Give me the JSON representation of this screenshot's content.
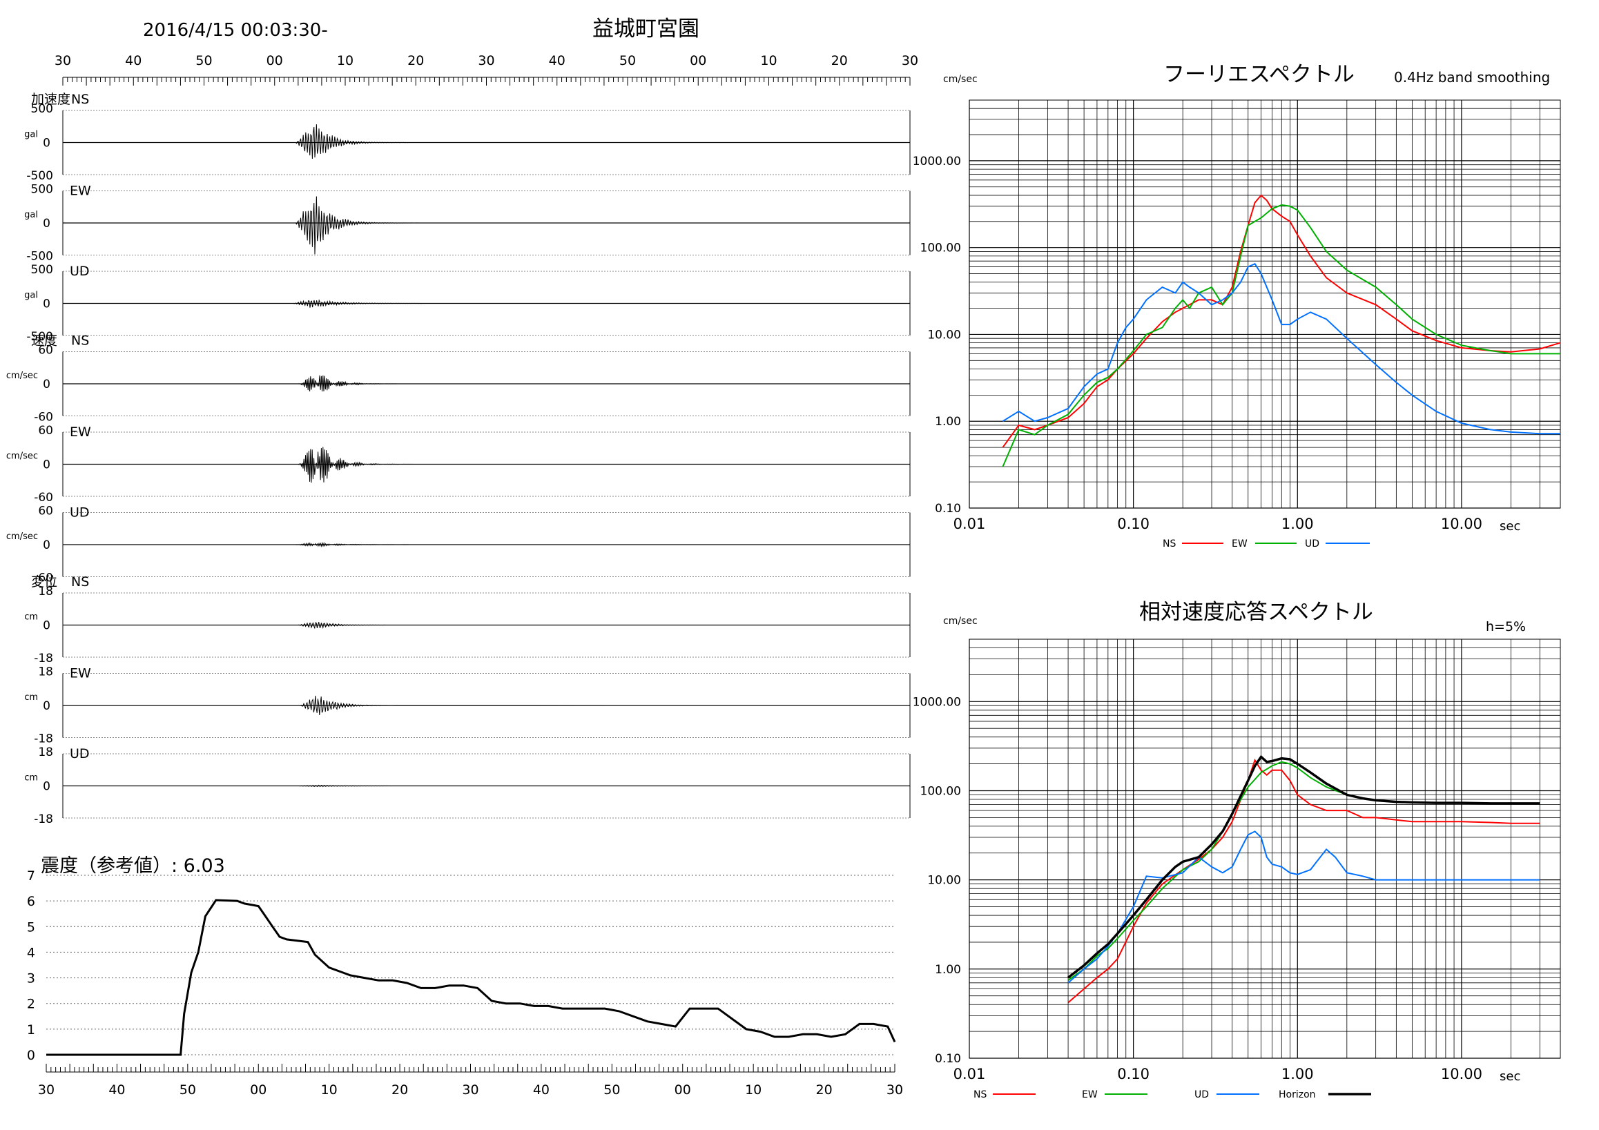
{
  "header": {
    "datetime": "2016/4/15 00:03:30-",
    "station": "益城町宮園"
  },
  "time_axis": {
    "top_labels": [
      "30",
      "40",
      "50",
      "00",
      "10",
      "20",
      "30",
      "40",
      "50",
      "00",
      "10",
      "20",
      "30"
    ],
    "bottom_labels": [
      "30",
      "40",
      "50",
      "00",
      "10",
      "20",
      "30",
      "40",
      "50",
      "00",
      "10",
      "20",
      "30"
    ]
  },
  "colors": {
    "NS": "#ff0000",
    "EW": "#00b000",
    "UD": "#0070ff",
    "Horizon": "#000000",
    "grid": "#000000",
    "trace": "#000000"
  },
  "waveforms": {
    "units": {
      "acc": "gal",
      "vel": "cm/sec",
      "disp": "cm"
    },
    "group_labels": {
      "acc": "加速度",
      "vel": "速度",
      "disp": "変位"
    },
    "panels": [
      {
        "label": "NS",
        "max": "500",
        "zero": "0",
        "min": "-500",
        "peak": 330,
        "onset_s": 49.5,
        "scale": 500
      },
      {
        "label": "EW",
        "max": "500",
        "zero": "0",
        "min": "-500",
        "peak": 470,
        "onset_s": 49.5,
        "scale": 500
      },
      {
        "label": "UD",
        "max": "500",
        "zero": "0",
        "min": "-500",
        "peak": 70,
        "onset_s": 49.0,
        "scale": 500
      },
      {
        "label": "NS",
        "max": "60",
        "zero": "0",
        "min": "-60",
        "peak": 24,
        "onset_s": 50.0,
        "scale": 60
      },
      {
        "label": "EW",
        "max": "60",
        "zero": "0",
        "min": "-60",
        "peak": 50,
        "onset_s": 50.0,
        "scale": 60
      },
      {
        "label": "UD",
        "max": "60",
        "zero": "0",
        "min": "-60",
        "peak": 4,
        "onset_s": 49.5,
        "scale": 60
      },
      {
        "label": "NS",
        "max": "18",
        "zero": "0",
        "min": "-18",
        "peak": 2.3,
        "onset_s": 50.0,
        "scale": 18
      },
      {
        "label": "EW",
        "max": "18",
        "zero": "0",
        "min": "-18",
        "peak": 6.5,
        "onset_s": 50.5,
        "scale": 18
      },
      {
        "label": "UD",
        "max": "18",
        "zero": "0",
        "min": "-18",
        "peak": 0.5,
        "onset_s": 50.0,
        "scale": 18
      }
    ]
  },
  "intensity": {
    "title": "震度（参考値）: 6.03",
    "y_ticks": [
      "0",
      "1",
      "2",
      "3",
      "4",
      "5",
      "6",
      "7"
    ]
  },
  "fourier": {
    "title": "フーリエスペクトル",
    "subtitle": "0.4Hz band smoothing",
    "y_unit": "cm/sec",
    "x_unit": "sec",
    "y_ticks": [
      "0.10",
      "1.00",
      "10.00",
      "100.00",
      "1000.00"
    ],
    "x_ticks": [
      "0.01",
      "0.10",
      "1.00",
      "10.00"
    ],
    "legend": [
      "NS",
      "EW",
      "UD"
    ]
  },
  "response": {
    "title": "相対速度応答スペクトル",
    "damping": "h=5%",
    "y_unit": "cm/sec",
    "x_unit": "sec",
    "y_ticks": [
      "0.10",
      "1.00",
      "10.00",
      "100.00",
      "1000.00"
    ],
    "x_ticks": [
      "0.01",
      "0.10",
      "1.00",
      "10.00"
    ],
    "legend": [
      "NS",
      "EW",
      "UD",
      "Horizon"
    ]
  },
  "chart_data": [
    {
      "type": "line",
      "title": "震度（参考値）: 6.03",
      "xlabel": "",
      "ylabel": "",
      "ylim": [
        0,
        7
      ],
      "x_unit_note": "seconds after 2016/4/15 00:03:30",
      "series": [
        {
          "x": [
            0,
            19,
            19.5,
            20.5,
            21.5,
            22.5,
            24,
            27,
            28,
            30,
            31,
            32,
            33,
            34,
            37,
            38,
            40,
            42,
            43,
            45,
            47,
            49,
            51,
            53,
            55,
            57,
            59,
            61,
            63,
            65,
            67,
            69,
            71,
            73,
            75,
            77,
            79,
            81,
            83,
            85,
            87,
            89,
            91,
            93,
            95,
            97,
            99,
            101,
            103,
            105,
            107,
            109,
            111,
            113,
            115,
            117,
            119,
            120
          ],
          "y": [
            0,
            0,
            1.6,
            3.2,
            4.0,
            5.4,
            6.03,
            6.0,
            5.9,
            5.8,
            5.4,
            5.0,
            4.6,
            4.5,
            4.4,
            3.9,
            3.4,
            3.2,
            3.1,
            3.0,
            2.9,
            2.9,
            2.8,
            2.6,
            2.6,
            2.7,
            2.7,
            2.6,
            2.1,
            2.0,
            2.0,
            1.9,
            1.9,
            1.8,
            1.8,
            1.8,
            1.8,
            1.7,
            1.5,
            1.3,
            1.2,
            1.1,
            1.8,
            1.8,
            1.8,
            1.4,
            1.0,
            0.9,
            0.7,
            0.7,
            0.8,
            0.8,
            0.7,
            0.8,
            1.2,
            1.2,
            1.1,
            0.5
          ]
        }
      ]
    },
    {
      "type": "line",
      "title": "フーリエスペクトル",
      "xlabel": "sec",
      "ylabel": "cm/sec",
      "xlim": [
        0.01,
        40
      ],
      "ylim": [
        0.1,
        5000
      ],
      "xscale": "log",
      "yscale": "log",
      "series": [
        {
          "name": "NS",
          "x": [
            0.016,
            0.02,
            0.025,
            0.03,
            0.04,
            0.05,
            0.06,
            0.07,
            0.08,
            0.1,
            0.12,
            0.15,
            0.18,
            0.2,
            0.22,
            0.25,
            0.3,
            0.35,
            0.4,
            0.45,
            0.5,
            0.55,
            0.6,
            0.65,
            0.7,
            0.8,
            0.9,
            1.0,
            1.2,
            1.5,
            2.0,
            3.0,
            4.0,
            5.0,
            7.0,
            10.0,
            15.0,
            20.0,
            30.0,
            40.0
          ],
          "y": [
            0.5,
            0.9,
            0.8,
            0.9,
            1.1,
            1.6,
            2.5,
            3.0,
            4.0,
            6.0,
            9.0,
            14.0,
            18.0,
            20.0,
            22.0,
            25.0,
            25.0,
            22.0,
            35.0,
            90.0,
            180.0,
            330.0,
            400.0,
            350.0,
            280.0,
            230.0,
            200.0,
            140.0,
            80.0,
            45.0,
            30.0,
            22.0,
            15.0,
            11.0,
            8.5,
            7.0,
            6.5,
            6.3,
            6.8,
            8.0
          ]
        },
        {
          "name": "EW",
          "x": [
            0.016,
            0.02,
            0.025,
            0.03,
            0.04,
            0.05,
            0.06,
            0.07,
            0.08,
            0.1,
            0.12,
            0.15,
            0.18,
            0.2,
            0.22,
            0.25,
            0.3,
            0.35,
            0.4,
            0.45,
            0.5,
            0.55,
            0.6,
            0.7,
            0.8,
            0.9,
            1.0,
            1.2,
            1.5,
            2.0,
            3.0,
            4.0,
            5.0,
            7.0,
            10.0,
            15.0,
            20.0,
            30.0,
            40.0
          ],
          "y": [
            0.3,
            0.8,
            0.7,
            0.9,
            1.2,
            2.0,
            2.8,
            3.2,
            4.0,
            6.5,
            10.0,
            12.0,
            20.0,
            25.0,
            20.0,
            30.0,
            35.0,
            22.0,
            30.0,
            80.0,
            180.0,
            200.0,
            220.0,
            280.0,
            310.0,
            300.0,
            270.0,
            170.0,
            90.0,
            55.0,
            35.0,
            22.0,
            15.0,
            10.0,
            7.5,
            6.5,
            6.0,
            6.0,
            6.0
          ]
        },
        {
          "name": "UD",
          "x": [
            0.016,
            0.02,
            0.025,
            0.03,
            0.04,
            0.05,
            0.06,
            0.07,
            0.08,
            0.09,
            0.1,
            0.12,
            0.15,
            0.18,
            0.2,
            0.22,
            0.25,
            0.3,
            0.35,
            0.4,
            0.45,
            0.5,
            0.55,
            0.6,
            0.7,
            0.8,
            0.9,
            1.0,
            1.2,
            1.5,
            2.0,
            3.0,
            4.0,
            5.0,
            7.0,
            10.0,
            15.0,
            20.0,
            30.0,
            40.0
          ],
          "y": [
            1.0,
            1.3,
            1.0,
            1.1,
            1.4,
            2.5,
            3.5,
            4.0,
            8.0,
            12.0,
            15.0,
            25.0,
            35.0,
            30.0,
            40.0,
            35.0,
            30.0,
            22.0,
            25.0,
            30.0,
            40.0,
            60.0,
            65.0,
            50.0,
            25.0,
            13.0,
            13.0,
            15.0,
            18.0,
            15.0,
            9.0,
            4.5,
            2.8,
            2.0,
            1.3,
            0.95,
            0.8,
            0.75,
            0.72,
            0.72
          ]
        }
      ]
    },
    {
      "type": "line",
      "title": "相対速度応答スペクトル",
      "xlabel": "sec",
      "ylabel": "cm/sec",
      "xlim": [
        0.01,
        40
      ],
      "ylim": [
        0.1,
        5000
      ],
      "xscale": "log",
      "yscale": "log",
      "series": [
        {
          "name": "NS",
          "x": [
            0.04,
            0.05,
            0.06,
            0.07,
            0.08,
            0.1,
            0.12,
            0.15,
            0.2,
            0.25,
            0.3,
            0.35,
            0.4,
            0.5,
            0.55,
            0.6,
            0.65,
            0.7,
            0.8,
            0.9,
            1.0,
            1.2,
            1.5,
            2.0,
            2.5,
            3.0,
            4.0,
            5.0,
            7.0,
            10.0,
            15.0,
            20.0,
            30.0
          ],
          "y": [
            0.42,
            0.6,
            0.8,
            1.0,
            1.3,
            3.0,
            5.5,
            9.0,
            13.0,
            17.0,
            22.0,
            30.0,
            45.0,
            130.0,
            220.0,
            170.0,
            150.0,
            170.0,
            170.0,
            130.0,
            90.0,
            70.0,
            60.0,
            60.0,
            50.0,
            50.0,
            47.0,
            45.0,
            45.0,
            45.0,
            44.0,
            43.0,
            43.0
          ]
        },
        {
          "name": "EW",
          "x": [
            0.04,
            0.05,
            0.06,
            0.07,
            0.08,
            0.1,
            0.12,
            0.15,
            0.2,
            0.25,
            0.3,
            0.35,
            0.4,
            0.5,
            0.6,
            0.7,
            0.8,
            0.9,
            1.0,
            1.2,
            1.5,
            2.0,
            2.5,
            3.0,
            4.0,
            5.0,
            7.0,
            10.0,
            15.0,
            20.0,
            30.0
          ],
          "y": [
            0.75,
            1.0,
            1.4,
            1.7,
            2.2,
            3.5,
            5.0,
            8.0,
            13.0,
            16.0,
            22.0,
            35.0,
            55.0,
            110.0,
            160.0,
            190.0,
            210.0,
            200.0,
            180.0,
            140.0,
            110.0,
            90.0,
            82.0,
            78.0,
            75.0,
            74.0,
            73.0,
            73.0,
            72.0,
            72.0,
            72.0
          ]
        },
        {
          "name": "UD",
          "x": [
            0.04,
            0.05,
            0.06,
            0.07,
            0.08,
            0.1,
            0.12,
            0.15,
            0.2,
            0.25,
            0.3,
            0.35,
            0.4,
            0.45,
            0.5,
            0.55,
            0.6,
            0.65,
            0.7,
            0.8,
            0.9,
            1.0,
            1.2,
            1.5,
            1.7,
            2.0,
            2.5,
            3.0,
            4.0,
            5.0,
            7.0,
            10.0,
            15.0,
            20.0,
            30.0
          ],
          "y": [
            0.7,
            1.0,
            1.3,
            1.8,
            2.5,
            5.0,
            11.0,
            10.5,
            12.0,
            18.0,
            14.0,
            12.0,
            14.0,
            22.0,
            32.0,
            35.0,
            30.0,
            18.0,
            15.0,
            14.0,
            12.0,
            11.5,
            13.0,
            22.0,
            18.0,
            12.0,
            11.0,
            10.0,
            10.0,
            10.0,
            10.0,
            10.0,
            10.0,
            10.0,
            10.0
          ]
        },
        {
          "name": "Horizon",
          "x": [
            0.04,
            0.05,
            0.06,
            0.07,
            0.08,
            0.1,
            0.12,
            0.15,
            0.18,
            0.2,
            0.25,
            0.3,
            0.35,
            0.4,
            0.5,
            0.55,
            0.6,
            0.65,
            0.7,
            0.8,
            0.9,
            1.0,
            1.2,
            1.5,
            2.0,
            2.5,
            3.0,
            4.0,
            5.0,
            7.0,
            10.0,
            15.0,
            20.0,
            30.0
          ],
          "y": [
            0.8,
            1.1,
            1.5,
            1.9,
            2.5,
            4.0,
            6.0,
            10.0,
            14.0,
            16.0,
            18.0,
            25.0,
            35.0,
            55.0,
            130.0,
            190.0,
            240.0,
            210.0,
            215.0,
            230.0,
            225.0,
            200.0,
            160.0,
            120.0,
            90.0,
            82.0,
            78.0,
            75.0,
            74.0,
            73.0,
            73.0,
            72.0,
            72.0,
            72.0
          ]
        }
      ]
    }
  ]
}
